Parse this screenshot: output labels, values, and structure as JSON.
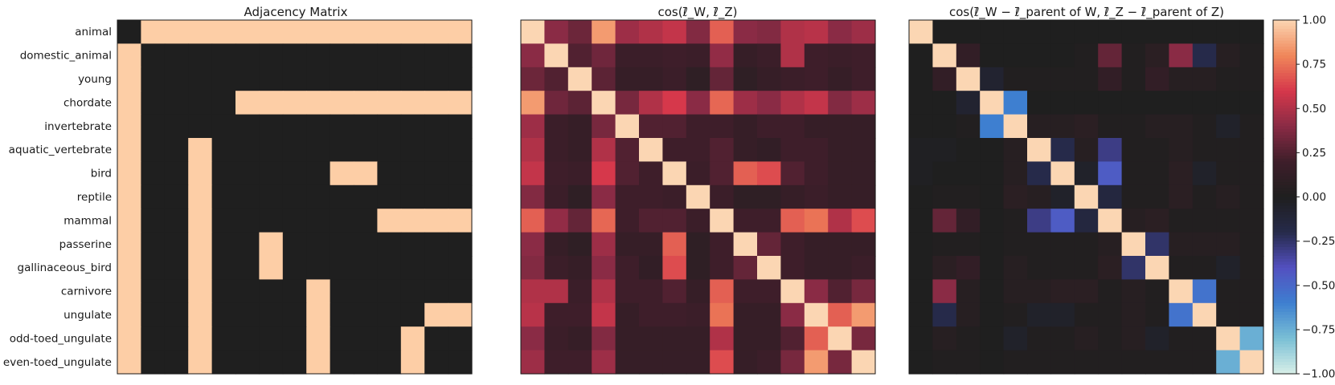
{
  "row_labels": [
    "animal",
    "domestic_animal",
    "young",
    "chordate",
    "invertebrate",
    "aquatic_vertebrate",
    "bird",
    "reptile",
    "mammal",
    "passerine",
    "gallinaceous_bird",
    "carnivore",
    "ungulate",
    "odd-toed_ungulate",
    "even-toed_ungulate"
  ],
  "colors": {
    "adjacency_on": "#fdcea6",
    "adjacency_off": "#1f1f1f",
    "diverging_stops": [
      "#d8efe8",
      "#79bfd5",
      "#3e7fd0",
      "#5350c0",
      "#262a4a",
      "#1f1f1f",
      "#3e1e2a",
      "#8a2b45",
      "#d6384b",
      "#f0875a",
      "#fbd6b3"
    ]
  },
  "chart_data": [
    {
      "type": "heatmap",
      "title": "Adjacency Matrix",
      "rows": [
        "animal",
        "domestic_animal",
        "young",
        "chordate",
        "invertebrate",
        "aquatic_vertebrate",
        "bird",
        "reptile",
        "mammal",
        "passerine",
        "gallinaceous_bird",
        "carnivore",
        "ungulate",
        "odd-toed_ungulate",
        "even-toed_ungulate"
      ],
      "values": [
        [
          0,
          1,
          1,
          1,
          1,
          1,
          1,
          1,
          1,
          1,
          1,
          1,
          1,
          1,
          1
        ],
        [
          1,
          0,
          0,
          0,
          0,
          0,
          0,
          0,
          0,
          0,
          0,
          0,
          0,
          0,
          0
        ],
        [
          1,
          0,
          0,
          0,
          0,
          0,
          0,
          0,
          0,
          0,
          0,
          0,
          0,
          0,
          0
        ],
        [
          1,
          0,
          0,
          0,
          0,
          1,
          1,
          1,
          1,
          1,
          1,
          1,
          1,
          1,
          1
        ],
        [
          1,
          0,
          0,
          0,
          0,
          0,
          0,
          0,
          0,
          0,
          0,
          0,
          0,
          0,
          0
        ],
        [
          1,
          0,
          0,
          1,
          0,
          0,
          0,
          0,
          0,
          0,
          0,
          0,
          0,
          0,
          0
        ],
        [
          1,
          0,
          0,
          1,
          0,
          0,
          0,
          0,
          0,
          1,
          1,
          0,
          0,
          0,
          0
        ],
        [
          1,
          0,
          0,
          1,
          0,
          0,
          0,
          0,
          0,
          0,
          0,
          0,
          0,
          0,
          0
        ],
        [
          1,
          0,
          0,
          1,
          0,
          0,
          0,
          0,
          0,
          0,
          0,
          1,
          1,
          1,
          1
        ],
        [
          1,
          0,
          0,
          1,
          0,
          0,
          1,
          0,
          0,
          0,
          0,
          0,
          0,
          0,
          0
        ],
        [
          1,
          0,
          0,
          1,
          0,
          0,
          1,
          0,
          0,
          0,
          0,
          0,
          0,
          0,
          0
        ],
        [
          1,
          0,
          0,
          1,
          0,
          0,
          0,
          0,
          1,
          0,
          0,
          0,
          0,
          0,
          0
        ],
        [
          1,
          0,
          0,
          1,
          0,
          0,
          0,
          0,
          1,
          0,
          0,
          0,
          0,
          1,
          1
        ],
        [
          1,
          0,
          0,
          1,
          0,
          0,
          0,
          0,
          1,
          0,
          0,
          0,
          1,
          0,
          0
        ],
        [
          1,
          0,
          0,
          1,
          0,
          0,
          0,
          0,
          1,
          0,
          0,
          0,
          1,
          0,
          0
        ]
      ],
      "range": [
        0,
        1
      ]
    },
    {
      "type": "heatmap",
      "title": "cos(ℓ̄_W, ℓ̄_Z)",
      "rows": [
        "animal",
        "domestic_animal",
        "young",
        "chordate",
        "invertebrate",
        "aquatic_vertebrate",
        "bird",
        "reptile",
        "mammal",
        "passerine",
        "gallinaceous_bird",
        "carnivore",
        "ungulate",
        "odd-toed_ungulate",
        "even-toed_ungulate"
      ],
      "values": [
        [
          1.0,
          0.4,
          0.32,
          0.85,
          0.45,
          0.5,
          0.55,
          0.38,
          0.7,
          0.4,
          0.38,
          0.5,
          0.52,
          0.4,
          0.45
        ],
        [
          0.4,
          1.0,
          0.25,
          0.33,
          0.18,
          0.18,
          0.2,
          0.18,
          0.42,
          0.15,
          0.18,
          0.5,
          0.2,
          0.18,
          0.2
        ],
        [
          0.32,
          0.25,
          1.0,
          0.28,
          0.15,
          0.15,
          0.18,
          0.1,
          0.3,
          0.1,
          0.15,
          0.18,
          0.2,
          0.15,
          0.2
        ],
        [
          0.85,
          0.33,
          0.28,
          1.0,
          0.35,
          0.5,
          0.6,
          0.4,
          0.72,
          0.45,
          0.4,
          0.5,
          0.55,
          0.38,
          0.45
        ],
        [
          0.45,
          0.18,
          0.15,
          0.35,
          1.0,
          0.25,
          0.25,
          0.2,
          0.2,
          0.15,
          0.2,
          0.2,
          0.15,
          0.15,
          0.15
        ],
        [
          0.5,
          0.18,
          0.15,
          0.5,
          0.25,
          1.0,
          0.2,
          0.2,
          0.25,
          0.15,
          0.12,
          0.2,
          0.2,
          0.15,
          0.15
        ],
        [
          0.55,
          0.2,
          0.18,
          0.6,
          0.25,
          0.2,
          1.0,
          0.18,
          0.25,
          0.7,
          0.65,
          0.25,
          0.2,
          0.15,
          0.15
        ],
        [
          0.38,
          0.18,
          0.1,
          0.4,
          0.2,
          0.2,
          0.18,
          1.0,
          0.18,
          0.1,
          0.1,
          0.15,
          0.18,
          0.15,
          0.15
        ],
        [
          0.7,
          0.42,
          0.3,
          0.72,
          0.2,
          0.25,
          0.25,
          0.18,
          1.0,
          0.2,
          0.2,
          0.7,
          0.75,
          0.5,
          0.65
        ],
        [
          0.4,
          0.15,
          0.1,
          0.45,
          0.15,
          0.15,
          0.7,
          0.1,
          0.2,
          1.0,
          0.3,
          0.2,
          0.15,
          0.15,
          0.15
        ],
        [
          0.38,
          0.18,
          0.15,
          0.4,
          0.2,
          0.12,
          0.65,
          0.1,
          0.2,
          0.3,
          1.0,
          0.2,
          0.15,
          0.15,
          0.18
        ],
        [
          0.5,
          0.5,
          0.18,
          0.5,
          0.2,
          0.2,
          0.25,
          0.15,
          0.7,
          0.2,
          0.2,
          1.0,
          0.4,
          0.25,
          0.35
        ],
        [
          0.52,
          0.2,
          0.2,
          0.55,
          0.15,
          0.2,
          0.2,
          0.18,
          0.75,
          0.15,
          0.15,
          0.4,
          1.0,
          0.7,
          0.85
        ],
        [
          0.4,
          0.18,
          0.15,
          0.38,
          0.15,
          0.15,
          0.15,
          0.15,
          0.5,
          0.15,
          0.15,
          0.25,
          0.7,
          1.0,
          0.35
        ],
        [
          0.45,
          0.2,
          0.2,
          0.45,
          0.15,
          0.15,
          0.15,
          0.15,
          0.65,
          0.15,
          0.18,
          0.35,
          0.85,
          0.35,
          1.0
        ]
      ],
      "range": [
        -1,
        1
      ]
    },
    {
      "type": "heatmap",
      "title": "cos(ℓ̄_W − ℓ̄_parent of W, ℓ̄_Z − ℓ̄_parent of Z)",
      "rows": [
        "animal",
        "domestic_animal",
        "young",
        "chordate",
        "invertebrate",
        "aquatic_vertebrate",
        "bird",
        "reptile",
        "mammal",
        "passerine",
        "gallinaceous_bird",
        "carnivore",
        "ungulate",
        "odd-toed_ungulate",
        "even-toed_ungulate"
      ],
      "values": [
        [
          1.0,
          0.0,
          0.0,
          0.0,
          0.0,
          0.0,
          0.0,
          0.0,
          0.0,
          0.0,
          0.0,
          0.0,
          0.0,
          0.0,
          0.0
        ],
        [
          0.0,
          1.0,
          0.12,
          0.0,
          0.0,
          0.0,
          0.0,
          0.02,
          0.3,
          0.02,
          0.08,
          0.4,
          -0.2,
          0.05,
          0.02
        ],
        [
          0.0,
          0.12,
          1.0,
          -0.08,
          0.02,
          0.02,
          0.02,
          0.02,
          0.12,
          0.02,
          0.12,
          0.05,
          0.05,
          0.02,
          0.02
        ],
        [
          0.0,
          0.0,
          -0.08,
          1.0,
          -0.6,
          0.0,
          0.0,
          0.0,
          0.0,
          0.0,
          0.0,
          0.0,
          0.0,
          0.0,
          0.0
        ],
        [
          0.0,
          0.0,
          0.02,
          -0.6,
          1.0,
          0.05,
          0.05,
          0.08,
          0.02,
          0.02,
          0.05,
          0.05,
          0.02,
          -0.05,
          0.02
        ],
        [
          -0.02,
          -0.02,
          0.0,
          0.0,
          0.05,
          1.0,
          -0.2,
          0.05,
          -0.3,
          0.02,
          0.02,
          0.05,
          0.02,
          0.02,
          0.02
        ],
        [
          -0.02,
          0.0,
          0.0,
          0.0,
          0.05,
          -0.2,
          1.0,
          -0.05,
          -0.45,
          0.02,
          0.02,
          0.08,
          -0.05,
          0.02,
          0.02
        ],
        [
          0.0,
          0.02,
          0.02,
          0.0,
          0.08,
          0.05,
          -0.05,
          1.0,
          -0.15,
          0.02,
          0.02,
          0.08,
          0.02,
          0.05,
          0.02
        ],
        [
          0.0,
          0.3,
          0.12,
          0.0,
          0.02,
          -0.3,
          -0.45,
          -0.15,
          1.0,
          0.05,
          0.08,
          0.02,
          0.02,
          0.02,
          0.02
        ],
        [
          0.0,
          0.02,
          0.02,
          0.0,
          0.02,
          0.02,
          0.02,
          0.02,
          0.05,
          1.0,
          -0.25,
          0.05,
          0.05,
          0.05,
          0.02
        ],
        [
          0.0,
          0.08,
          0.12,
          0.0,
          0.05,
          0.02,
          0.02,
          0.02,
          0.08,
          -0.25,
          1.0,
          0.02,
          0.02,
          -0.05,
          0.02
        ],
        [
          0.0,
          0.4,
          0.05,
          0.0,
          0.05,
          0.05,
          0.08,
          0.08,
          0.02,
          0.05,
          0.02,
          1.0,
          -0.55,
          0.02,
          0.02
        ],
        [
          0.0,
          -0.2,
          0.05,
          0.0,
          0.02,
          -0.05,
          -0.05,
          0.02,
          0.02,
          0.05,
          0.02,
          -0.55,
          1.0,
          0.02,
          0.02
        ],
        [
          0.0,
          0.05,
          0.02,
          0.0,
          -0.05,
          0.02,
          0.02,
          0.05,
          0.02,
          0.05,
          -0.05,
          0.02,
          0.02,
          1.0,
          -0.75
        ],
        [
          0.0,
          0.02,
          0.02,
          0.0,
          0.02,
          0.02,
          0.02,
          0.02,
          0.02,
          0.02,
          0.02,
          0.02,
          0.02,
          -0.75,
          1.0
        ]
      ],
      "range": [
        -1,
        1
      ]
    }
  ],
  "colorbar": {
    "ticks": [
      1.0,
      0.75,
      0.5,
      0.25,
      0.0,
      -0.25,
      -0.5,
      -0.75,
      -1.0
    ],
    "tick_labels": [
      "1.00",
      "0.75",
      "0.50",
      "0.25",
      "0.00",
      "−0.25",
      "−0.50",
      "−0.75",
      "−1.00"
    ],
    "range": [
      -1,
      1
    ]
  }
}
